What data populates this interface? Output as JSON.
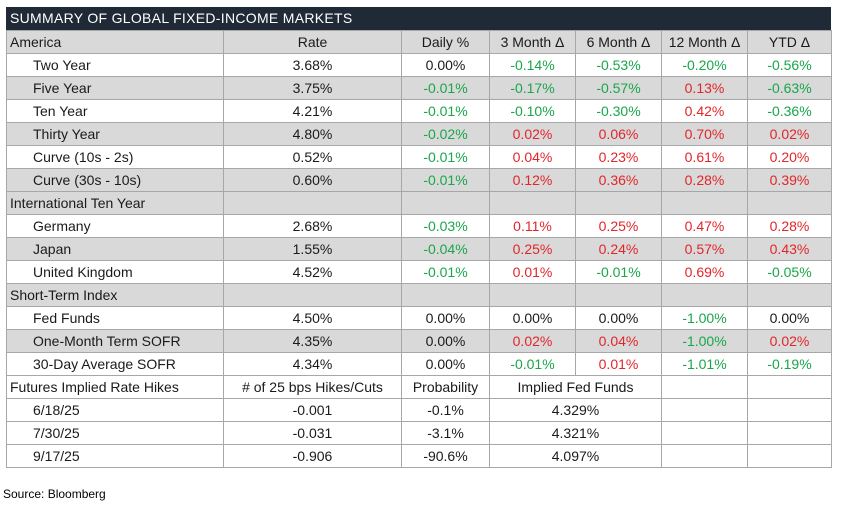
{
  "title": "SUMMARY OF GLOBAL FIXED-INCOME MARKETS",
  "colors": {
    "positive": "#e1262a",
    "negative": "#1aa64a",
    "header_bg": "#1f2a36",
    "shade_bg": "#d9d9d9"
  },
  "header": [
    "America",
    "Rate",
    "Daily %",
    "3 Month Δ",
    "6 Month Δ",
    "12 Month Δ",
    "YTD Δ"
  ],
  "america": [
    {
      "label": "Two Year",
      "rate": "3.68%",
      "daily": "0.00%",
      "m3": "-0.14%",
      "m6": "-0.53%",
      "m12": "-0.20%",
      "ytd": "-0.56%"
    },
    {
      "label": "Five Year",
      "rate": "3.75%",
      "daily": "-0.01%",
      "m3": "-0.17%",
      "m6": "-0.57%",
      "m12": "0.13%",
      "ytd": "-0.63%"
    },
    {
      "label": "Ten Year",
      "rate": "4.21%",
      "daily": "-0.01%",
      "m3": "-0.10%",
      "m6": "-0.30%",
      "m12": "0.42%",
      "ytd": "-0.36%"
    },
    {
      "label": "Thirty Year",
      "rate": "4.80%",
      "daily": "-0.02%",
      "m3": "0.02%",
      "m6": "0.06%",
      "m12": "0.70%",
      "ytd": "0.02%"
    },
    {
      "label": "Curve (10s - 2s)",
      "rate": "0.52%",
      "daily": "-0.01%",
      "m3": "0.04%",
      "m6": "0.23%",
      "m12": "0.61%",
      "ytd": "0.20%"
    },
    {
      "label": "Curve (30s - 10s)",
      "rate": "0.60%",
      "daily": "-0.01%",
      "m3": "0.12%",
      "m6": "0.36%",
      "m12": "0.28%",
      "ytd": "0.39%"
    }
  ],
  "international_title": "International Ten Year",
  "international": [
    {
      "label": "Germany",
      "rate": "2.68%",
      "daily": "-0.03%",
      "m3": "0.11%",
      "m6": "0.25%",
      "m12": "0.47%",
      "ytd": "0.28%"
    },
    {
      "label": "Japan",
      "rate": "1.55%",
      "daily": "-0.04%",
      "m3": "0.25%",
      "m6": "0.24%",
      "m12": "0.57%",
      "ytd": "0.43%"
    },
    {
      "label": "United Kingdom",
      "rate": "4.52%",
      "daily": "-0.01%",
      "m3": "0.01%",
      "m6": "-0.01%",
      "m12": "0.69%",
      "ytd": "-0.05%"
    }
  ],
  "short_term_title": "Short-Term Index",
  "short_term": [
    {
      "label": "Fed Funds",
      "rate": "4.50%",
      "daily": "0.00%",
      "m3": "0.00%",
      "m6": "0.00%",
      "m12": "-1.00%",
      "ytd": "0.00%"
    },
    {
      "label": "One-Month Term SOFR",
      "rate": "4.35%",
      "daily": "0.00%",
      "m3": "0.02%",
      "m6": "0.04%",
      "m12": "-1.00%",
      "ytd": "0.02%"
    },
    {
      "label": "30-Day Average SOFR",
      "rate": "4.34%",
      "daily": "0.00%",
      "m3": "-0.01%",
      "m6": "0.01%",
      "m12": "-1.01%",
      "ytd": "-0.19%"
    }
  ],
  "futures_header": [
    "Futures Implied Rate Hikes",
    "# of 25 bps Hikes/Cuts",
    "Probability",
    "Implied Fed Funds"
  ],
  "futures": [
    {
      "date": "6/18/25",
      "hikes": "-0.001",
      "probability": "-0.1%",
      "implied": "4.329%"
    },
    {
      "date": "7/30/25",
      "hikes": "-0.031",
      "probability": "-3.1%",
      "implied": "4.321%"
    },
    {
      "date": "9/17/25",
      "hikes": "-0.906",
      "probability": "-90.6%",
      "implied": "4.097%"
    }
  ],
  "source": "Source: Bloomberg"
}
